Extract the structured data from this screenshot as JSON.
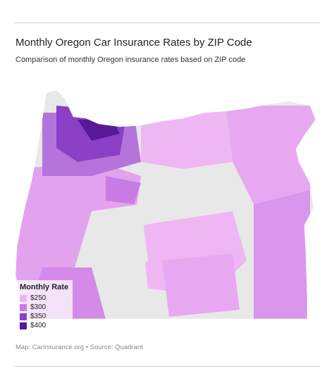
{
  "header": {
    "title": "Monthly Oregon Car Insurance Rates by ZIP Code",
    "subtitle": "Comparison of monthly Oregon insurance rates based on ZIP code"
  },
  "legend": {
    "title": "Monthly Rate",
    "items": [
      {
        "label": "$250",
        "color": "#efb6f4"
      },
      {
        "label": "$300",
        "color": "#c87be4"
      },
      {
        "label": "$350",
        "color": "#8a3fc6"
      },
      {
        "label": "$400",
        "color": "#561a98"
      }
    ]
  },
  "footer": {
    "source": "Map: CarInsurance.org • Source: Quadrant"
  }
}
